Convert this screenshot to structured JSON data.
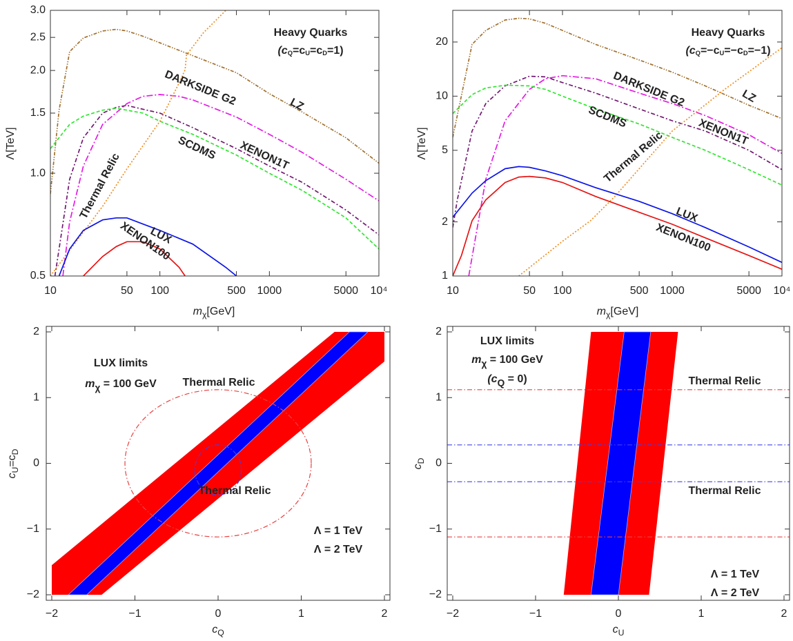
{
  "chart_data": [
    {
      "type": "line",
      "title": "Heavy Quarks",
      "subtitle": [
        "(c",
        "Q",
        "=c",
        "U",
        "=c",
        "D",
        "=1)"
      ],
      "xlabel": [
        "m",
        "χ",
        "[GeV]"
      ],
      "ylabel": "Λ[TeV]",
      "xlog": true,
      "ylog": true,
      "xlim": [
        10,
        10000
      ],
      "ylim": [
        0.5,
        3.0
      ],
      "xticks": [
        10,
        50,
        100,
        500,
        1000,
        5000,
        {
          "value": 10000,
          "label": "10⁴"
        }
      ],
      "yticks": [
        0.5,
        {
          "value": 1.0,
          "label": "1.0"
        },
        1.5,
        {
          "value": 2.0,
          "label": "2.0"
        },
        2.5,
        {
          "value": 3.0,
          "label": "3.0"
        }
      ],
      "series": [
        {
          "name": "LZ",
          "color": "#a0702e",
          "x": [
            10,
            12,
            15,
            20,
            30,
            40,
            50,
            70,
            100,
            200,
            500,
            1000,
            2000,
            5000,
            10000
          ],
          "values": [
            0.87,
            1.53,
            2.27,
            2.49,
            2.61,
            2.64,
            2.61,
            2.52,
            2.41,
            2.21,
            1.97,
            1.71,
            1.51,
            1.27,
            1.07
          ]
        },
        {
          "name": "DARKSIDE G2",
          "color": "#e619e6",
          "x": [
            13,
            15,
            20,
            30,
            50,
            70,
            100,
            150,
            200,
            500,
            1000,
            2000,
            5000,
            10000
          ],
          "values": [
            0.5,
            0.72,
            1.05,
            1.39,
            1.6,
            1.68,
            1.7,
            1.68,
            1.64,
            1.46,
            1.3,
            1.15,
            0.96,
            0.83
          ]
        },
        {
          "name": "XENON1T",
          "color": "#701870",
          "x": [
            11,
            12,
            15,
            20,
            30,
            40,
            50,
            70,
            100,
            200,
            500,
            1000,
            2000,
            5000,
            10000
          ],
          "values": [
            0.5,
            0.6,
            0.96,
            1.27,
            1.5,
            1.56,
            1.58,
            1.54,
            1.5,
            1.36,
            1.18,
            1.05,
            0.94,
            0.78,
            0.66
          ]
        },
        {
          "name": "SCDMS",
          "color": "#2ee62e",
          "x": [
            10,
            15,
            20,
            30,
            40,
            50,
            70,
            100,
            200,
            500,
            1000,
            2000,
            5000,
            10000
          ],
          "values": [
            1.18,
            1.39,
            1.47,
            1.53,
            1.55,
            1.53,
            1.5,
            1.42,
            1.3,
            1.13,
            1.0,
            0.89,
            0.74,
            0.6
          ]
        },
        {
          "name": "Thermal Relic",
          "color": "#f08c1e",
          "x": [
            10,
            30,
            50,
            100,
            150,
            170,
            175,
            250,
            400
          ],
          "values": [
            0.5,
            0.8,
            1.03,
            1.42,
            1.84,
            2.01,
            2.22,
            2.58,
            3.0
          ]
        },
        {
          "name": "LUX",
          "color": "#0a14e6",
          "x": [
            12,
            15,
            20,
            30,
            40,
            50,
            70,
            100,
            200,
            400,
            500
          ],
          "values": [
            0.5,
            0.6,
            0.68,
            0.73,
            0.74,
            0.74,
            0.71,
            0.68,
            0.62,
            0.53,
            0.5
          ]
        },
        {
          "name": "XENON100",
          "color": "#e61414",
          "x": [
            20,
            30,
            40,
            50,
            70,
            100,
            150,
            170
          ],
          "values": [
            0.5,
            0.57,
            0.61,
            0.63,
            0.63,
            0.6,
            0.53,
            0.5
          ]
        }
      ]
    },
    {
      "type": "line",
      "title": "Heavy Quarks",
      "subtitle": [
        "(c",
        "Q",
        "=−c",
        "U",
        "=−c",
        "D",
        "=−1)"
      ],
      "xlabel": [
        "m",
        "χ",
        "[GeV]"
      ],
      "ylabel": "Λ[TeV]",
      "xlog": true,
      "ylog": true,
      "xlim": [
        10,
        10000
      ],
      "ylim": [
        1,
        30
      ],
      "xticks": [
        10,
        50,
        100,
        500,
        1000,
        5000,
        {
          "value": 10000,
          "label": "10⁴"
        }
      ],
      "yticks": [
        1,
        2,
        5,
        10,
        20
      ],
      "series": [
        {
          "name": "LZ",
          "color": "#a0702e",
          "x": [
            10,
            15,
            20,
            30,
            40,
            50,
            70,
            100,
            200,
            500,
            1000,
            2000,
            5000,
            10000
          ],
          "values": [
            5.9,
            19.4,
            23.2,
            26.5,
            27.1,
            26.9,
            25.4,
            23.2,
            19.4,
            15.9,
            13.6,
            11.4,
            8.9,
            7.5
          ]
        },
        {
          "name": "DARKSIDE G2",
          "color": "#e619e6",
          "x": [
            14,
            20,
            30,
            50,
            70,
            100,
            200,
            500,
            1000,
            2000,
            5000,
            10000
          ],
          "values": [
            1,
            3.45,
            7.3,
            10.9,
            12.5,
            13.0,
            12.5,
            10.4,
            9.1,
            7.8,
            6.1,
            4.8
          ]
        },
        {
          "name": "XENON1T",
          "color": "#701870",
          "x": [
            10,
            11,
            15,
            20,
            30,
            50,
            70,
            100,
            200,
            500,
            1000,
            2000,
            5000,
            10000
          ],
          "values": [
            1.86,
            2.65,
            6.4,
            9.1,
            11.4,
            12.9,
            12.8,
            11.9,
            10.4,
            8.5,
            7.3,
            6.4,
            5.0,
            3.9
          ]
        },
        {
          "name": "SCDMS",
          "color": "#2ee62e",
          "x": [
            10,
            15,
            20,
            30,
            50,
            70,
            100,
            200,
            500,
            1000,
            2000,
            5000,
            10000
          ],
          "values": [
            8.0,
            10.2,
            11.1,
            11.5,
            11.4,
            10.9,
            10.0,
            8.5,
            7.0,
            5.9,
            5.0,
            3.9,
            3.2
          ]
        },
        {
          "name": "Thermal Relic",
          "color": "#f08c1e",
          "x": [
            40,
            100,
            180,
            300,
            1000,
            3000,
            10000
          ],
          "values": [
            1.0,
            1.56,
            2.03,
            2.77,
            6.4,
            10.9,
            18.6
          ]
        },
        {
          "name": "LUX",
          "color": "#0a14e6",
          "x": [
            10,
            15,
            20,
            30,
            40,
            50,
            70,
            100,
            200,
            500,
            1000,
            2000,
            5000,
            10000
          ],
          "values": [
            2.12,
            2.89,
            3.39,
            3.95,
            4.06,
            4.02,
            3.84,
            3.61,
            3.1,
            2.6,
            2.22,
            1.86,
            1.45,
            1.19
          ]
        },
        {
          "name": "XENON100",
          "color": "#e61414",
          "x": [
            10,
            12,
            15,
            20,
            30,
            40,
            50,
            70,
            100,
            200,
            500,
            1000,
            2000,
            5000,
            10000
          ],
          "values": [
            1.0,
            1.3,
            2.03,
            2.65,
            3.31,
            3.55,
            3.58,
            3.51,
            3.31,
            2.77,
            2.26,
            1.94,
            1.63,
            1.3,
            1.09
          ]
        }
      ]
    },
    {
      "type": "region",
      "notes": [
        "LUX limits",
        [
          "m",
          "χ",
          " = 100 GeV"
        ]
      ],
      "xlabel": [
        "c",
        "Q"
      ],
      "ylabel": [
        "c",
        "U",
        "=c",
        "D"
      ],
      "xlim": [
        -2,
        2
      ],
      "ylim": [
        -2,
        2
      ],
      "xticks": [
        {
          "value": -2,
          "label": "−2"
        },
        {
          "value": -1,
          "label": "−1"
        },
        0,
        1,
        2
      ],
      "yticks": [
        {
          "value": -2,
          "label": "−2"
        },
        {
          "value": -1,
          "label": "−1"
        },
        0,
        1,
        2
      ],
      "series": [
        {
          "name": "Λ = 1 TeV",
          "color": "#0000ff",
          "x": [
            -1.8,
            1.58,
            1.8,
            -1.58
          ],
          "values": [
            -2,
            2,
            2,
            -2
          ]
        },
        {
          "name": "Λ = 2 TeV",
          "color": "#ff0000",
          "x": [
            -2,
            -2,
            1.4,
            2,
            2,
            -1.4
          ],
          "values": [
            -2,
            -1.55,
            2,
            2,
            1.55,
            -2
          ]
        }
      ],
      "ellipses": [
        {
          "name": "Thermal Relic",
          "color": "#e84040",
          "cx": 0,
          "cy": 0,
          "rx": 1.12,
          "ry": 1.12
        },
        {
          "name": "Thermal Relic",
          "color": "#4040e8",
          "cx": 0,
          "cy": -0.1,
          "rx": 0.28,
          "ry": 0.38
        }
      ]
    },
    {
      "type": "region",
      "notes": [
        "LUX limits",
        [
          "m",
          "χ",
          " = 100 GeV"
        ],
        [
          "(c",
          "Q",
          " = 0)"
        ]
      ],
      "xlabel": [
        "c",
        "U"
      ],
      "ylabel": [
        "c",
        "D"
      ],
      "xlim": [
        -2,
        2
      ],
      "ylim": [
        -2,
        2
      ],
      "xticks": [
        {
          "value": -2,
          "label": "−2"
        },
        {
          "value": -1,
          "label": "−1"
        },
        0,
        1,
        2
      ],
      "yticks": [
        {
          "value": -2,
          "label": "−2"
        },
        {
          "value": -1,
          "label": "−1"
        },
        0,
        1,
        2
      ],
      "series": [
        {
          "name": "Λ = 1 TeV",
          "color": "#0000ff",
          "x": [
            -0.33,
            0.07,
            0.39,
            0.0
          ],
          "values": [
            -2,
            2,
            2,
            -2
          ]
        },
        {
          "name": "Λ = 2 TeV",
          "color": "#ff0000",
          "x": [
            -0.66,
            -0.33,
            0.72,
            0.37
          ],
          "values": [
            -2,
            2,
            2,
            -2
          ]
        }
      ],
      "hlines": [
        {
          "name": "Thermal Relic",
          "color": "#e84040",
          "values": [
            1.12,
            -1.12
          ]
        },
        {
          "name": "Thermal Relic",
          "color": "#4040e8",
          "values": [
            0.28,
            -0.28
          ]
        }
      ]
    }
  ]
}
